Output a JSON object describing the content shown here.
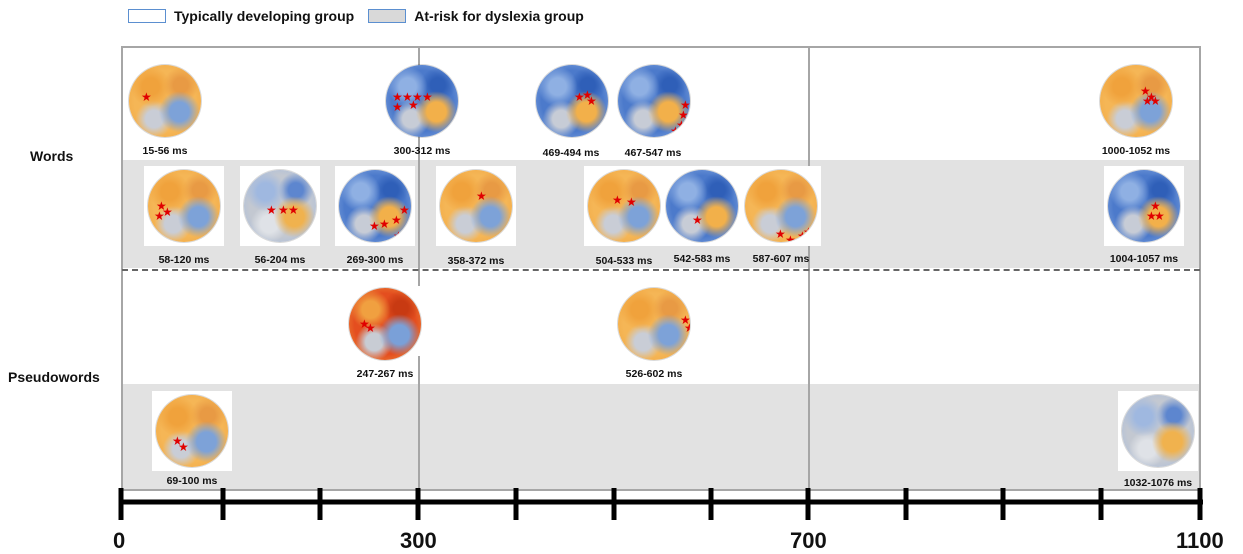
{
  "legend": [
    {
      "label": "Typically developing group",
      "style": "white"
    },
    {
      "label": "At-risk for dyslexia group",
      "style": "grey"
    }
  ],
  "rows": {
    "words": "Words",
    "pseudowords": "Pseudowords"
  },
  "axis": {
    "labels": [
      "0",
      "300",
      "700",
      "1100"
    ]
  },
  "maps": {
    "words_typical": [
      {
        "label": "15-56 ms",
        "palette": "orange"
      },
      {
        "label": "300-312 ms",
        "palette": "blue"
      },
      {
        "label": "469-494 ms",
        "palette": "blue"
      },
      {
        "label": "467-547 ms",
        "palette": "blue"
      },
      {
        "label": "1000-1052 ms",
        "palette": "orange"
      }
    ],
    "words_risk": [
      {
        "label": "58-120 ms",
        "palette": "orange"
      },
      {
        "label": "56-204 ms",
        "palette": "grey"
      },
      {
        "label": "269-300 ms",
        "palette": "blue"
      },
      {
        "label": "358-372 ms",
        "palette": "orange"
      },
      {
        "label": "504-533 ms",
        "palette": "orange"
      },
      {
        "label": "542-583 ms",
        "palette": "blue"
      },
      {
        "label": "587-607 ms",
        "palette": "orange"
      },
      {
        "label": "1004-1057 ms",
        "palette": "blue"
      }
    ],
    "pseudo_typical": [
      {
        "label": "247-267 ms",
        "palette": "red"
      },
      {
        "label": "526-602 ms",
        "palette": "orange"
      }
    ],
    "pseudo_risk": [
      {
        "label": "69-100 ms",
        "palette": "orange"
      },
      {
        "label": "1032-1076 ms",
        "palette": "grey"
      }
    ]
  },
  "colors": {
    "orange": "#f2b04a",
    "blue": "#4a78c8",
    "red": "#e0501e",
    "grey": "#bfc5cf",
    "star": "#e00000",
    "frame": "#a6a6a6",
    "band": "#e2e2e2"
  }
}
